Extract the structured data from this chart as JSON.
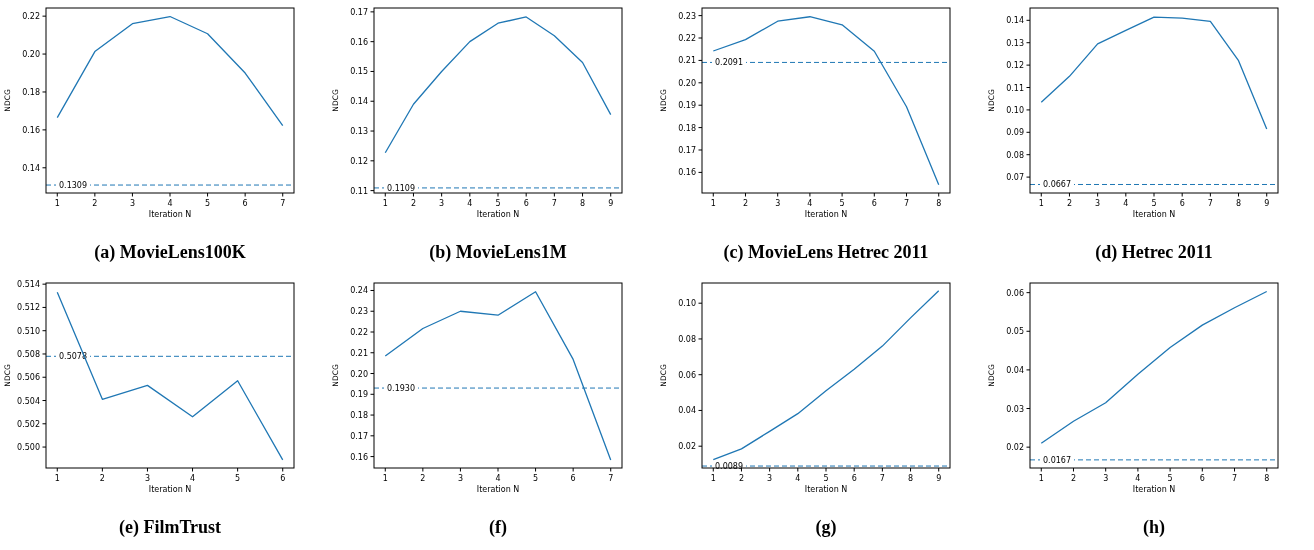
{
  "chart_data": [
    {
      "type": "line",
      "title": "(a) MovieLens100K",
      "xlabel": "Iteration N",
      "ylabel": "NDCG",
      "x": [
        1,
        2,
        3,
        4,
        5,
        6,
        7
      ],
      "xlim": [
        0.7,
        7.3
      ],
      "xticks": [
        1,
        2,
        3,
        4,
        5,
        6,
        7
      ],
      "ylim": [
        0.1267,
        0.2243
      ],
      "yticks": [
        {
          "value": 0.14,
          "label": "0.14"
        },
        {
          "value": 0.16,
          "label": "0.16"
        },
        {
          "value": 0.18,
          "label": "0.18"
        },
        {
          "value": 0.2,
          "label": "0.20"
        },
        {
          "value": 0.22,
          "label": "0.22"
        }
      ],
      "series": [
        {
          "color": "#1f77b4",
          "values": [
            0.1665,
            0.2013,
            0.216,
            0.2198,
            0.2107,
            0.19,
            0.1622
          ]
        }
      ],
      "ref_lines": [
        {
          "axis": "y",
          "value": 0.1309,
          "label": "0.1309",
          "color": "#1f77b4",
          "line_style": "dashed"
        }
      ],
      "grid": false
    },
    {
      "type": "line",
      "title": "(b) MovieLens1M",
      "xlabel": "Iteration N",
      "ylabel": "NDCG",
      "x": [
        1,
        2,
        3,
        4,
        5,
        6,
        7,
        8,
        9
      ],
      "xlim": [
        0.6,
        9.4
      ],
      "xticks": [
        1,
        2,
        3,
        4,
        5,
        6,
        7,
        8,
        9
      ],
      "ylim": [
        0.1092,
        0.1713
      ],
      "yticks": [
        {
          "value": 0.11,
          "label": "0.11"
        },
        {
          "value": 0.12,
          "label": "0.12"
        },
        {
          "value": 0.13,
          "label": "0.13"
        },
        {
          "value": 0.14,
          "label": "0.14"
        },
        {
          "value": 0.15,
          "label": "0.15"
        },
        {
          "value": 0.16,
          "label": "0.16"
        },
        {
          "value": 0.17,
          "label": "0.17"
        }
      ],
      "series": [
        {
          "color": "#1f77b4",
          "values": [
            0.1227,
            0.139,
            0.15,
            0.16,
            0.1662,
            0.1683,
            0.162,
            0.153,
            0.1355
          ]
        }
      ],
      "ref_lines": [
        {
          "axis": "y",
          "value": 0.1109,
          "label": "0.1109",
          "color": "#1f77b4",
          "line_style": "dashed"
        }
      ],
      "grid": false
    },
    {
      "type": "line",
      "title": "(c) MovieLens Hetrec 2011",
      "xlabel": "Iteration N",
      "ylabel": "NDCG",
      "x": [
        1,
        2,
        3,
        4,
        5,
        6,
        7,
        8
      ],
      "xlim": [
        0.65,
        8.35
      ],
      "xticks": [
        1,
        2,
        3,
        4,
        5,
        6,
        7,
        8
      ],
      "ylim": [
        0.1508,
        0.2334
      ],
      "yticks": [
        0.16,
        0.17,
        0.18,
        0.19,
        {
          "value": 0.2,
          "label": "0.20"
        },
        0.21,
        0.22,
        0.23
      ],
      "series": [
        {
          "color": "#1f77b4",
          "values": [
            0.2142,
            0.2193,
            0.2275,
            0.2295,
            0.2259,
            0.2141,
            0.1893,
            0.1545
          ]
        }
      ],
      "ref_lines": [
        {
          "axis": "y",
          "value": 0.2091,
          "label": "0.2091",
          "color": "#1f77b4",
          "line_style": "dashed"
        }
      ],
      "grid": false
    },
    {
      "type": "line",
      "title": "(d) Hetrec 2011",
      "xlabel": "Iteration N",
      "ylabel": "NDCG",
      "x": [
        1,
        2,
        3,
        4,
        5,
        6,
        7,
        8,
        9
      ],
      "xlim": [
        0.6,
        9.4
      ],
      "xticks": [
        1,
        2,
        3,
        4,
        5,
        6,
        7,
        8,
        9
      ],
      "ylim": [
        0.0629,
        0.1455
      ],
      "yticks": [
        0.07,
        0.08,
        0.09,
        {
          "value": 0.1,
          "label": "0.10"
        },
        0.11,
        0.12,
        0.13,
        0.14
      ],
      "series": [
        {
          "color": "#1f77b4",
          "values": [
            0.1034,
            0.115,
            0.1295,
            0.1355,
            0.1414,
            0.141,
            0.1395,
            0.122,
            0.0915
          ]
        }
      ],
      "ref_lines": [
        {
          "axis": "y",
          "value": 0.0667,
          "label": "0.0667",
          "color": "#1f77b4",
          "line_style": "dashed"
        }
      ],
      "grid": false
    },
    {
      "type": "line",
      "title": "(e) FilmTrust",
      "xlabel": "Iteration N",
      "ylabel": "NDCG",
      "x": [
        1,
        2,
        3,
        4,
        5,
        6
      ],
      "xlim": [
        0.75,
        6.25
      ],
      "xticks": [
        1,
        2,
        3,
        4,
        5,
        6
      ],
      "ylim": [
        0.4982,
        0.5141
      ],
      "yticks": [
        {
          "value": 0.5,
          "label": "0.500"
        },
        0.502,
        0.504,
        0.506,
        0.508,
        {
          "value": 0.51,
          "label": "0.510"
        },
        0.512,
        0.514
      ],
      "series": [
        {
          "color": "#1f77b4",
          "values": [
            0.5133,
            0.5041,
            0.5053,
            0.5026,
            0.5057,
            0.4989
          ]
        }
      ],
      "ref_lines": [
        {
          "axis": "y",
          "value": 0.5078,
          "label": "0.5078",
          "color": "#1f77b4",
          "line_style": "dashed"
        }
      ],
      "grid": false
    },
    {
      "type": "line",
      "title": "(f)",
      "xlabel": "Iteration N",
      "ylabel": "NDCG",
      "x": [
        1,
        2,
        3,
        4,
        5,
        6,
        7
      ],
      "xlim": [
        0.7,
        7.3
      ],
      "xticks": [
        1,
        2,
        3,
        4,
        5,
        6,
        7
      ],
      "ylim": [
        0.1545,
        0.2436
      ],
      "yticks": [
        0.16,
        0.17,
        0.18,
        0.19,
        {
          "value": 0.2,
          "label": "0.20"
        },
        0.21,
        0.22,
        0.23,
        0.24
      ],
      "series": [
        {
          "color": "#1f77b4",
          "values": [
            0.2084,
            0.2217,
            0.23,
            0.2281,
            0.2394,
            0.2068,
            0.1584
          ]
        }
      ],
      "ref_lines": [
        {
          "axis": "y",
          "value": 0.193,
          "label": "0.1930",
          "color": "#1f77b4",
          "line_style": "dashed"
        }
      ],
      "grid": false
    },
    {
      "type": "line",
      "title": "(g)",
      "xlabel": "Iteration N",
      "ylabel": "NDCG",
      "x": [
        1,
        2,
        3,
        4,
        5,
        6,
        7,
        8,
        9
      ],
      "xlim": [
        0.6,
        9.4
      ],
      "xticks": [
        1,
        2,
        3,
        4,
        5,
        6,
        7,
        8,
        9
      ],
      "ylim": [
        0.0078,
        0.1113
      ],
      "yticks": [
        0.02,
        0.04,
        0.06,
        0.08,
        {
          "value": 0.1,
          "label": "0.10"
        }
      ],
      "series": [
        {
          "color": "#1f77b4",
          "values": [
            0.0125,
            0.0185,
            0.0283,
            0.0382,
            0.051,
            0.063,
            0.076,
            0.0918,
            0.107
          ]
        }
      ],
      "ref_lines": [
        {
          "axis": "y",
          "value": 0.0089,
          "label": "0.0089",
          "color": "#1f77b4",
          "line_style": "dashed"
        }
      ],
      "grid": false
    },
    {
      "type": "line",
      "title": "(h)",
      "xlabel": "Iteration N",
      "ylabel": "NDCG",
      "x": [
        1,
        2,
        3,
        4,
        5,
        6,
        7,
        8
      ],
      "xlim": [
        0.65,
        8.35
      ],
      "xticks": [
        1,
        2,
        3,
        4,
        5,
        6,
        7,
        8
      ],
      "ylim": [
        0.0146,
        0.0625
      ],
      "yticks": [
        0.02,
        0.03,
        0.04,
        0.05,
        0.06
      ],
      "series": [
        {
          "color": "#1f77b4",
          "values": [
            0.021,
            0.0267,
            0.0315,
            0.0389,
            0.0458,
            0.0516,
            0.0561,
            0.0603
          ]
        }
      ],
      "ref_lines": [
        {
          "axis": "y",
          "value": 0.0167,
          "label": "0.0167",
          "color": "#1f77b4",
          "line_style": "dashed"
        }
      ],
      "grid": false
    }
  ]
}
